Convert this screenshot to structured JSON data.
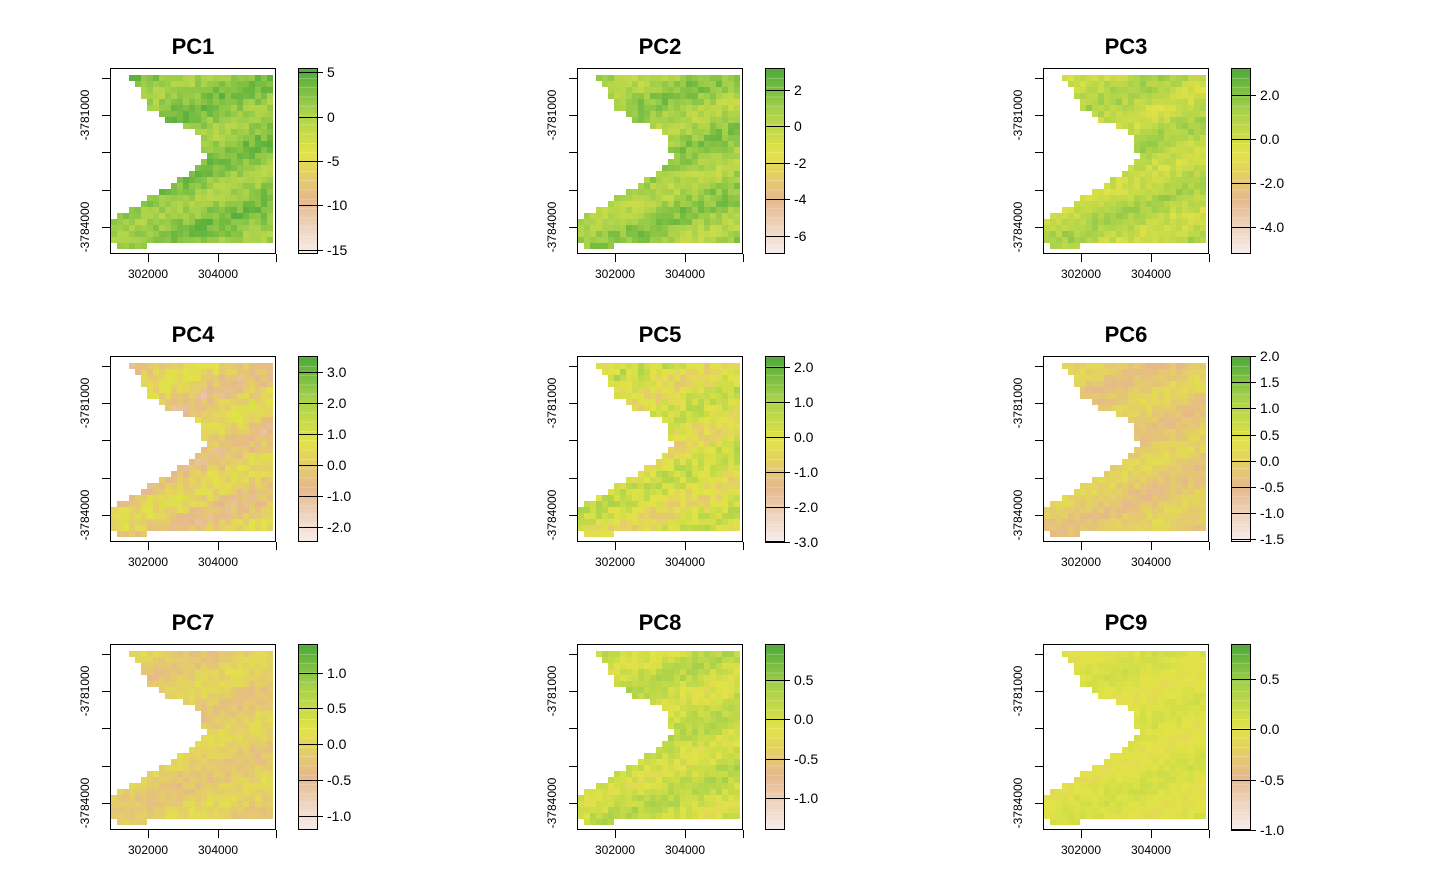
{
  "figure": {
    "colors": {
      "high": "#4daa3a",
      "mid_green": "#a6d14b",
      "yellow": "#e2e346",
      "tan": "#e6b98a",
      "low": "#f7eeee"
    },
    "x_ticks": [
      "302000",
      "304000"
    ],
    "y_ticks": [
      "-3781000",
      "-3784000"
    ]
  },
  "chart_data": [
    {
      "type": "heatmap",
      "title": "PC1",
      "legend_labels": [
        "5",
        "0",
        "-5",
        "-10",
        "-15"
      ],
      "legend_range": [
        -15.5,
        5.5
      ],
      "mean": 2.0,
      "spread": 2.5
    },
    {
      "type": "heatmap",
      "title": "PC2",
      "legend_labels": [
        "2",
        "0",
        "-2",
        "-4",
        "-6"
      ],
      "legend_range": [
        -7.0,
        3.2
      ],
      "mean": 1.0,
      "spread": 1.3
    },
    {
      "type": "heatmap",
      "title": "PC3",
      "legend_labels": [
        "2.0",
        "0.0",
        "-2.0",
        "-4.0"
      ],
      "legend_range": [
        -5.2,
        3.2
      ],
      "mean": 0.6,
      "spread": 1.0
    },
    {
      "type": "heatmap",
      "title": "PC4",
      "legend_labels": [
        "3.0",
        "2.0",
        "1.0",
        "0.0",
        "-1.0",
        "-2.0"
      ],
      "legend_range": [
        -2.5,
        3.5
      ],
      "mean": 0.0,
      "spread": 0.9
    },
    {
      "type": "heatmap",
      "title": "PC5",
      "legend_labels": [
        "2.0",
        "1.0",
        "0.0",
        "-1.0",
        "-2.0",
        "-3.0"
      ],
      "legend_range": [
        -3.0,
        2.3
      ],
      "mean": 0.0,
      "spread": 0.9
    },
    {
      "type": "heatmap",
      "title": "PC6",
      "legend_labels": [
        "2.0",
        "1.5",
        "1.0",
        "0.5",
        "0.0",
        "-0.5",
        "-1.0",
        "-1.5"
      ],
      "legend_range": [
        -1.55,
        2.0
      ],
      "mean": -0.1,
      "spread": 0.35
    },
    {
      "type": "heatmap",
      "title": "PC7",
      "legend_labels": [
        "1.0",
        "0.5",
        "0.0",
        "-0.5",
        "-1.0"
      ],
      "legend_range": [
        -1.2,
        1.4
      ],
      "mean": -0.1,
      "spread": 0.25
    },
    {
      "type": "heatmap",
      "title": "PC8",
      "legend_labels": [
        "0.5",
        "0.0",
        "-0.5",
        "-1.0"
      ],
      "legend_range": [
        -1.4,
        0.95
      ],
      "mean": 0.1,
      "spread": 0.3
    },
    {
      "type": "heatmap",
      "title": "PC9",
      "legend_labels": [
        "0.5",
        "0.0",
        "-0.5",
        "-1.0"
      ],
      "legend_range": [
        -1.0,
        0.85
      ],
      "mean": 0.05,
      "spread": 0.12
    }
  ]
}
